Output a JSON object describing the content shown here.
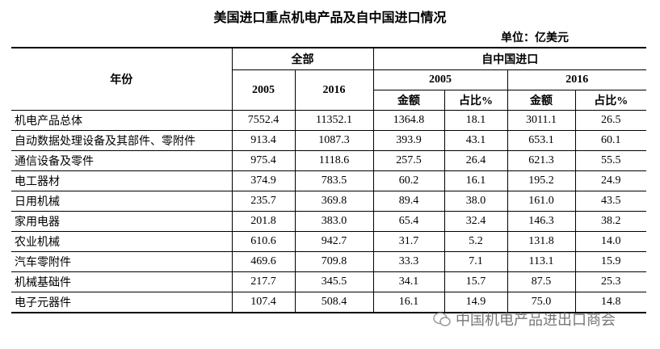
{
  "header": {
    "title": "美国进口重点机电产品及自中国进口情况",
    "unit": "单位：亿美元"
  },
  "table": {
    "header": {
      "year": "年份",
      "total": "全部",
      "from_china": "自中国进口",
      "total_2005": "2005",
      "total_2016": "2016",
      "china_2005": "2005",
      "china_2016": "2016",
      "sub": [
        "金额",
        "占比%",
        "金额",
        "占比%"
      ]
    },
    "rows": [
      [
        "机电产品总体",
        "7552.4",
        "11352.1",
        "1364.8",
        "18.1",
        "3011.1",
        "26.5"
      ],
      [
        "自动数据处理设备及其部件、零附件",
        "913.4",
        "1087.3",
        "393.9",
        "43.1",
        "653.1",
        "60.1"
      ],
      [
        "通信设备及零件",
        "975.4",
        "1118.6",
        "257.5",
        "26.4",
        "621.3",
        "55.5"
      ],
      [
        "电工器材",
        "374.9",
        "783.5",
        "60.2",
        "16.1",
        "195.2",
        "24.9"
      ],
      [
        "日用机械",
        "235.7",
        "369.8",
        "89.4",
        "38.0",
        "161.0",
        "43.5"
      ],
      [
        "家用电器",
        "201.8",
        "383.0",
        "65.4",
        "32.4",
        "146.3",
        "38.2"
      ],
      [
        "农业机械",
        "610.6",
        "942.7",
        "31.7",
        "5.2",
        "131.8",
        "14.0"
      ],
      [
        "汽车零附件",
        "469.6",
        "709.8",
        "33.3",
        "7.1",
        "113.1",
        "15.9"
      ],
      [
        "机械基础件",
        "217.7",
        "345.5",
        "34.1",
        "15.7",
        "87.5",
        "25.3"
      ],
      [
        "电子元器件",
        "107.4",
        "508.4",
        "16.1",
        "14.9",
        "75.0",
        "14.8"
      ]
    ]
  },
  "watermark": "中国机电产品进出口商会"
}
